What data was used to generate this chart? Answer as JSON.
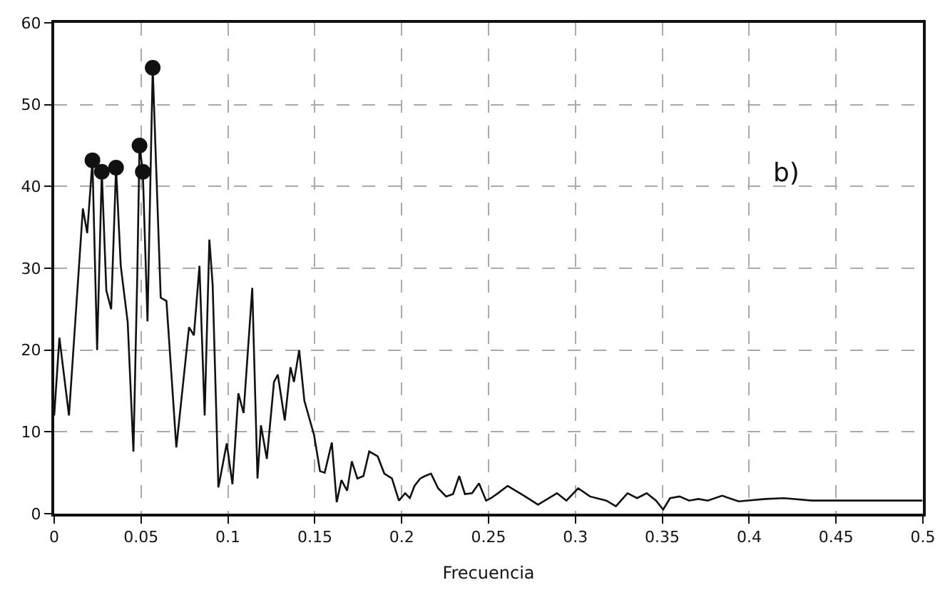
{
  "chart_data": {
    "type": "line",
    "xlabel": "Frecuencia",
    "annotations": [
      "b)"
    ],
    "xlim": [
      0,
      0.5
    ],
    "ylim": [
      0,
      60
    ],
    "xticks": [
      0,
      0.05,
      0.1,
      0.15,
      0.2,
      0.25,
      0.3,
      0.35,
      0.4,
      0.45,
      0.5
    ],
    "yticks": [
      0,
      10,
      20,
      30,
      40,
      50,
      60
    ],
    "grid": true,
    "series": [
      {
        "color": "#111111",
        "marker": "none",
        "line_style": "solid",
        "x": [
          0,
          0.003,
          0.0085,
          0.0165,
          0.019,
          0.022,
          0.0247,
          0.0274,
          0.03,
          0.0328,
          0.0356,
          0.0383,
          0.0423,
          0.0456,
          0.0478,
          0.0491,
          0.051,
          0.0537,
          0.0567,
          0.0613,
          0.0646,
          0.0703,
          0.0776,
          0.0804,
          0.0836,
          0.0866,
          0.0893,
          0.0912,
          0.0945,
          0.0993,
          0.1026,
          0.106,
          0.109,
          0.114,
          0.117,
          0.119,
          0.1224,
          0.1265,
          0.1287,
          0.1327,
          0.136,
          0.138,
          0.141,
          0.144,
          0.1496,
          0.153,
          0.1557,
          0.1598,
          0.1626,
          0.1653,
          0.1686,
          0.1713,
          0.1745,
          0.178,
          0.1813,
          0.1862,
          0.19,
          0.1944,
          0.1984,
          0.202,
          0.2047,
          0.2074,
          0.2107,
          0.2134,
          0.2169,
          0.221,
          0.2256,
          0.2296,
          0.2331,
          0.2364,
          0.2405,
          0.2445,
          0.2486,
          0.2514,
          0.2554,
          0.261,
          0.2704,
          0.2785,
          0.2894,
          0.2948,
          0.3016,
          0.3084,
          0.3178,
          0.3233,
          0.33,
          0.3355,
          0.341,
          0.3464,
          0.3505,
          0.3545,
          0.36,
          0.3654,
          0.3708,
          0.3762,
          0.3844,
          0.394,
          0.4094,
          0.42,
          0.436,
          0.463,
          0.4997
        ],
        "values": [
          12,
          21.5,
          12,
          37.3,
          34.3,
          43.2,
          20,
          41.8,
          27.3,
          25,
          42.3,
          30.3,
          23.4,
          7.6,
          29,
          45,
          41.8,
          23.5,
          54.5,
          26.4,
          26,
          8.1,
          22.8,
          21.8,
          30.3,
          12,
          33.5,
          28,
          3.2,
          8.6,
          3.6,
          14.7,
          12.3,
          27.6,
          4.3,
          10.8,
          6.7,
          16.1,
          17,
          11.4,
          17.9,
          16.1,
          20,
          13.8,
          9.6,
          5.2,
          5,
          8.7,
          1.4,
          4.1,
          2.8,
          6.4,
          4.3,
          4.6,
          7.6,
          7,
          4.9,
          4.3,
          1.6,
          2.5,
          1.9,
          3.4,
          4.3,
          4.6,
          4.9,
          3.1,
          2.1,
          2.4,
          4.6,
          2.4,
          2.5,
          3.7,
          1.6,
          1.9,
          2.5,
          3.4,
          2.2,
          1.1,
          2.5,
          1.6,
          3.1,
          2.1,
          1.6,
          0.9,
          2.5,
          1.9,
          2.5,
          1.6,
          0.5,
          1.9,
          2.1,
          1.6,
          1.8,
          1.6,
          2.2,
          1.5,
          1.8,
          1.9,
          1.6,
          1.6,
          1.6
        ]
      },
      {
        "type": "scatter",
        "color": "#111111",
        "marker": "circle",
        "x": [
          0.022,
          0.0274,
          0.0356,
          0.0491,
          0.051,
          0.0567
        ],
        "values": [
          43.2,
          41.8,
          42.3,
          45,
          41.8,
          54.5
        ]
      }
    ]
  }
}
